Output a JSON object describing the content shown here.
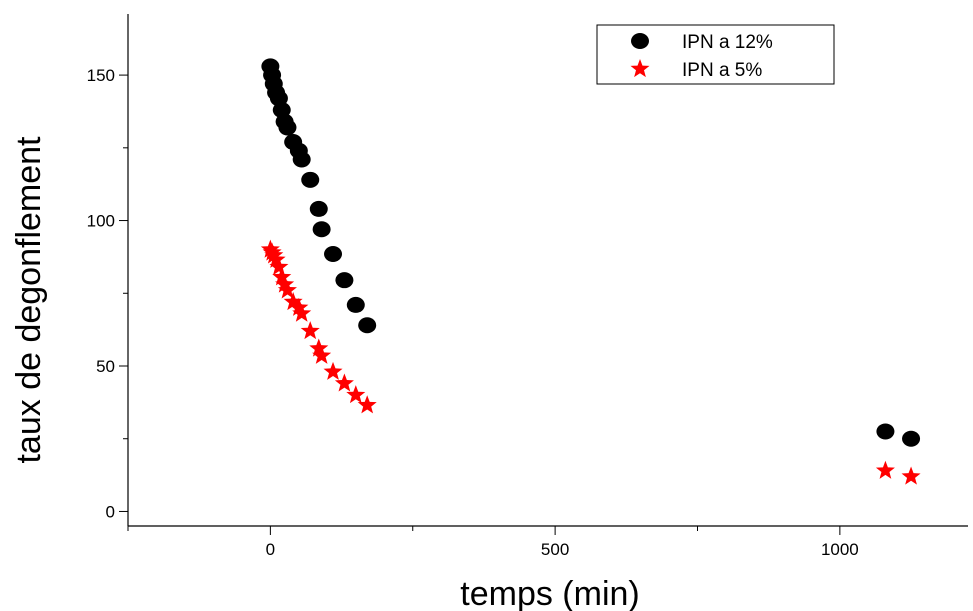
{
  "chart_data": {
    "type": "scatter",
    "title": "",
    "xlabel": "temps (min)",
    "ylabel": "taux de degonflement",
    "xlim": [
      -250,
      1225
    ],
    "ylim": [
      -5,
      171
    ],
    "xticks": [
      0,
      500,
      1000
    ],
    "xtick_labels": [
      "0",
      "500",
      "1000"
    ],
    "yticks": [
      0,
      50,
      100,
      150
    ],
    "ytick_labels": [
      "0",
      "50",
      "100",
      "150"
    ],
    "grid": false,
    "legend_position": "top-right",
    "series": [
      {
        "name": "IPN a 12%",
        "marker": "circle",
        "color": "#000000",
        "x": [
          0,
          3,
          6,
          10,
          15,
          20,
          25,
          30,
          40,
          50,
          55,
          70,
          85,
          90,
          110,
          130,
          150,
          170,
          1080,
          1125
        ],
        "y": [
          153,
          150,
          147,
          144,
          142,
          138,
          134,
          132,
          127,
          124,
          121,
          114,
          104,
          97,
          88.5,
          79.5,
          71,
          64,
          27.5,
          25
        ]
      },
      {
        "name": "IPN a 5%",
        "marker": "star",
        "color": "#ff0000",
        "x": [
          0,
          3,
          6,
          10,
          15,
          20,
          25,
          30,
          40,
          50,
          55,
          70,
          85,
          90,
          110,
          130,
          150,
          170,
          1080,
          1125
        ],
        "y": [
          90,
          89,
          88,
          86.5,
          84,
          80.5,
          78,
          76,
          72,
          70,
          68,
          62,
          56,
          53.5,
          48,
          44,
          40,
          36.5,
          14,
          12
        ]
      }
    ]
  }
}
